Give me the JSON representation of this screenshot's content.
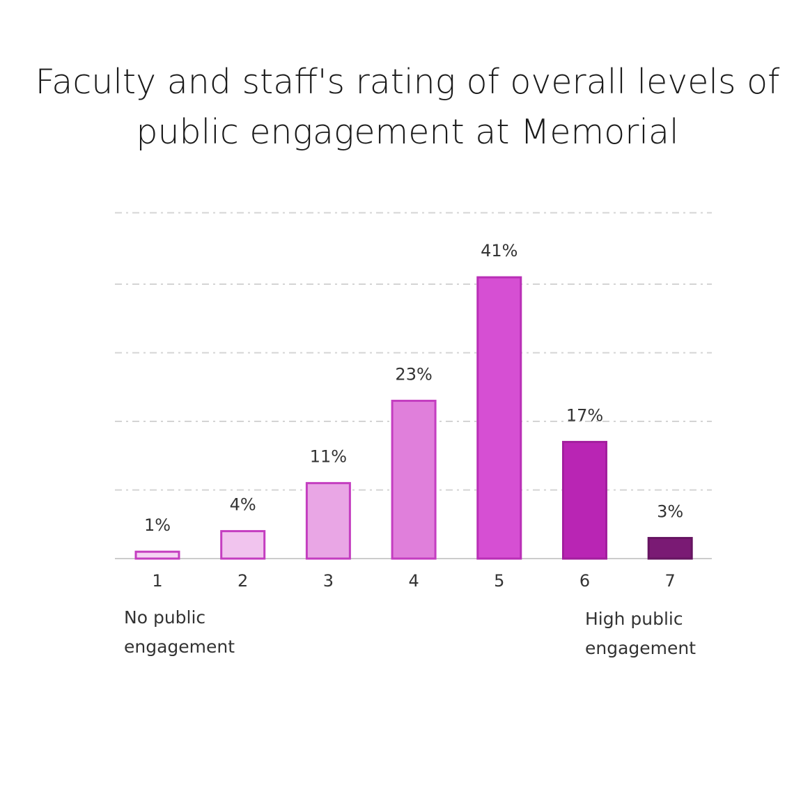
{
  "title_lines": [
    "Faculty and staff's rating of overall levels of",
    "public engagement at Memorial"
  ],
  "chart_data": {
    "type": "bar",
    "title": "Faculty and staff's rating of overall levels of public engagement at Memorial",
    "categories": [
      "1",
      "2",
      "3",
      "4",
      "5",
      "6",
      "7"
    ],
    "values": [
      1,
      4,
      11,
      23,
      41,
      17,
      3
    ],
    "value_labels": [
      "1%",
      "4%",
      "11%",
      "23%",
      "41%",
      "17%",
      "3%"
    ],
    "ylim": [
      0,
      50
    ],
    "grid": true,
    "low_end_label": [
      "No public",
      "engagement"
    ],
    "high_end_label": [
      "High public",
      "engagement"
    ],
    "bar_colors": [
      "#f5d3f3",
      "#f1c4ee",
      "#e9a6e5",
      "#e07fdb",
      "#d64fd3",
      "#b925b4",
      "#7a1a74"
    ],
    "bar_stroke_colors": [
      "#c43ec0",
      "#c43ec0",
      "#c43ec0",
      "#c43ec0",
      "#b92fb6",
      "#a31f9e",
      "#661561"
    ]
  }
}
